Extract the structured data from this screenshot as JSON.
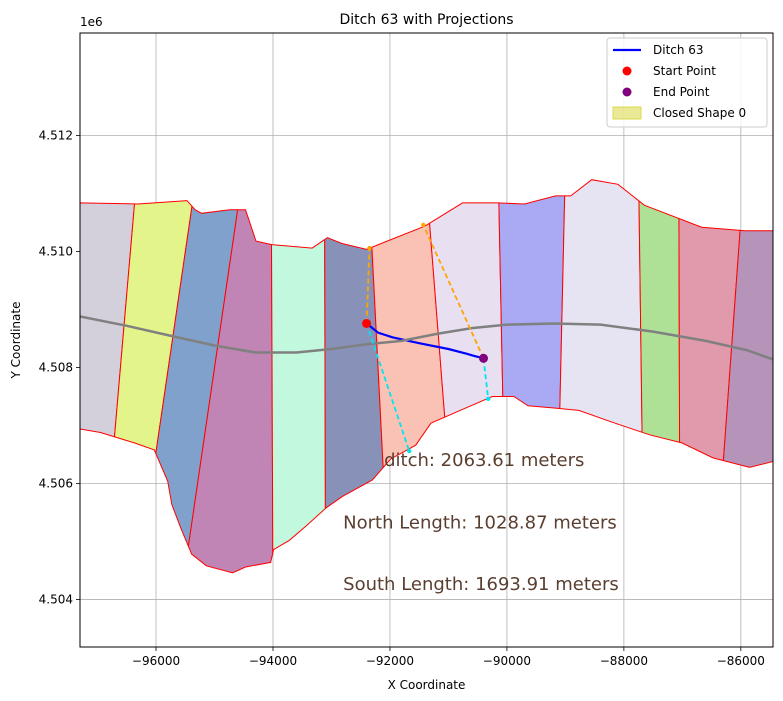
{
  "chart_data": {
    "type": "line",
    "title": "Ditch 63 with Projections",
    "xlabel": "X Coordinate",
    "ylabel": "Y Coordinate",
    "y_offset_label": "1e6",
    "xlim": [
      -97300,
      -85450
    ],
    "ylim": [
      4.50318,
      4.51377
    ],
    "xticks": [
      -96000,
      -94000,
      -92000,
      -90000,
      -88000,
      -86000
    ],
    "xtick_labels": [
      "−96000",
      "−94000",
      "−92000",
      "−90000",
      "−88000",
      "−86000"
    ],
    "yticks": [
      4.504,
      4.506,
      4.508,
      4.51,
      4.512
    ],
    "ytick_labels": [
      "4.504",
      "4.506",
      "4.508",
      "4.510",
      "4.512"
    ],
    "grid": true,
    "legend_position": "top-right",
    "legend": [
      {
        "label": "Ditch 63",
        "kind": "line",
        "color": "#0000ff"
      },
      {
        "label": "Start Point",
        "kind": "marker",
        "color": "#ff0000"
      },
      {
        "label": "End Point",
        "kind": "marker",
        "color": "#800080"
      },
      {
        "label": "Closed Shape 0",
        "kind": "patch",
        "color": "#dada50"
      }
    ],
    "outline": [
      [
        -97300,
        4.51084
      ],
      [
        -96310,
        4.51082
      ],
      [
        -95470,
        4.51088
      ],
      [
        -95330,
        4.51072
      ],
      [
        -95220,
        4.51066
      ],
      [
        -94740,
        4.51072
      ],
      [
        -94470,
        4.51072
      ],
      [
        -94290,
        4.51018
      ],
      [
        -94020,
        4.51012
      ],
      [
        -93330,
        4.51006
      ],
      [
        -93070,
        4.51024
      ],
      [
        -92820,
        4.51014
      ],
      [
        -92400,
        4.51004
      ],
      [
        -91400,
        4.51044
      ],
      [
        -90760,
        4.51084
      ],
      [
        -90150,
        4.51084
      ],
      [
        -89700,
        4.51082
      ],
      [
        -89170,
        4.51096
      ],
      [
        -88910,
        4.51096
      ],
      [
        -88550,
        4.51124
      ],
      [
        -88100,
        4.51116
      ],
      [
        -87650,
        4.5108
      ],
      [
        -86670,
        4.51042
      ],
      [
        -85930,
        4.51036
      ],
      [
        -85450,
        4.51036
      ],
      [
        -85450,
        4.50638
      ],
      [
        -85850,
        4.50628
      ],
      [
        -86470,
        4.50644
      ],
      [
        -87010,
        4.5067
      ],
      [
        -87560,
        4.50684
      ],
      [
        -88150,
        4.50704
      ],
      [
        -88770,
        4.50726
      ],
      [
        -89170,
        4.5073
      ],
      [
        -89640,
        4.50734
      ],
      [
        -89880,
        4.5075
      ],
      [
        -90250,
        4.5075
      ],
      [
        -90800,
        4.50726
      ],
      [
        -91300,
        4.50704
      ],
      [
        -91560,
        4.50666
      ],
      [
        -91990,
        4.50642
      ],
      [
        -92300,
        4.50606
      ],
      [
        -92810,
        4.50578
      ],
      [
        -93090,
        4.50558
      ],
      [
        -93420,
        4.50528
      ],
      [
        -93720,
        4.50502
      ],
      [
        -93990,
        4.50486
      ],
      [
        -94040,
        4.50464
      ],
      [
        -94470,
        4.50456
      ],
      [
        -94690,
        4.50446
      ],
      [
        -95140,
        4.50458
      ],
      [
        -95390,
        4.50478
      ],
      [
        -95580,
        4.50524
      ],
      [
        -95730,
        4.50564
      ],
      [
        -95800,
        4.50604
      ],
      [
        -96030,
        4.50658
      ],
      [
        -96370,
        4.5067
      ],
      [
        -96950,
        4.50688
      ],
      [
        -97300,
        4.50694
      ]
    ],
    "stripes": [
      {
        "color": "#d3d0dc",
        "x_top": [
          -97300,
          -96310
        ],
        "x_bot": [
          -97300,
          -96950
        ]
      },
      {
        "color": "#e3f58a",
        "x_top": [
          -96310,
          -95280
        ],
        "x_bot": [
          -96950,
          -96370
        ]
      },
      {
        "color": "#80a1cb",
        "x_top": [
          -95280,
          -94490
        ],
        "x_bot": [
          -96370,
          -95580
        ]
      },
      {
        "color": "#c085b5",
        "x_top": [
          -94490,
          -94030
        ],
        "x_bot": [
          -95580,
          -94000
        ]
      },
      {
        "color": "#c2f8dd",
        "x_top": [
          -94030,
          -93120
        ],
        "x_bot": [
          -94000,
          -93100
        ]
      },
      {
        "color": "#8892b8",
        "x_top": [
          -93120,
          -92380
        ],
        "x_bot": [
          -93100,
          -92000
        ]
      },
      {
        "color": "#f9c2b4",
        "x_top": [
          -92380,
          -91400
        ],
        "x_bot": [
          -92000,
          -90820
        ]
      },
      {
        "color": "#e8dff0",
        "x_top": [
          -91400,
          -90150
        ],
        "x_bot": [
          -90820,
          -90000
        ]
      },
      {
        "color": "#aaaaf4",
        "x_top": [
          -90150,
          -89000
        ],
        "x_bot": [
          -90000,
          -89170
        ]
      },
      {
        "color": "#e6e4f2",
        "x_top": [
          -89000,
          -87750
        ],
        "x_bot": [
          -89170,
          -87650
        ]
      },
      {
        "color": "#aee196",
        "x_top": [
          -87750,
          -87060
        ],
        "x_bot": [
          -87650,
          -87040
        ]
      },
      {
        "color": "#e09aab",
        "x_top": [
          -87060,
          -85930
        ],
        "x_bot": [
          -87040,
          -86470
        ]
      },
      {
        "color": "#b694b9",
        "x_top": [
          -85930,
          -85450
        ],
        "x_bot": [
          -86470,
          -85450
        ]
      }
    ],
    "series": [
      {
        "name": "Ditch 63",
        "color": "#0000ff",
        "x": [
          -92400,
          -92200,
          -91950,
          -91500,
          -91000,
          -90700,
          -90560,
          -90400
        ],
        "y": [
          4.50876,
          4.5086,
          4.50852,
          4.50842,
          4.50832,
          4.50824,
          4.5082,
          4.50816
        ]
      },
      {
        "name": "centerline",
        "color": "#808080",
        "x": [
          -97300,
          -96500,
          -95800,
          -95000,
          -94300,
          -93600,
          -93000,
          -92400,
          -91800,
          -91200,
          -90600,
          -90000,
          -89200,
          -88400,
          -87500,
          -86600,
          -85900,
          -85450
        ],
        "y": [
          4.50888,
          4.50872,
          4.50856,
          4.50838,
          4.50826,
          4.50826,
          4.50832,
          4.5084,
          4.50846,
          4.50858,
          4.50868,
          4.50874,
          4.50876,
          4.50874,
          4.50862,
          4.50846,
          4.5083,
          4.50814
        ]
      },
      {
        "name": "north-projection-start",
        "color": "#ffa500",
        "x": [
          -92400,
          -92350
        ],
        "y": [
          4.50876,
          4.51006
        ]
      },
      {
        "name": "north-projection-end",
        "color": "#ffa500",
        "x": [
          -90400,
          -91430
        ],
        "y": [
          4.50816,
          4.51046
        ]
      },
      {
        "name": "south-projection-start",
        "color": "#00e5ee",
        "x": [
          -92400,
          -91670
        ],
        "y": [
          4.50876,
          4.50656
        ]
      },
      {
        "name": "south-projection-end",
        "color": "#00e5ee",
        "x": [
          -90400,
          -90320
        ],
        "y": [
          4.50816,
          4.50746
        ]
      }
    ],
    "points": [
      {
        "name": "Start Point",
        "x": -92400,
        "y": 4.50876,
        "color": "#ff0000"
      },
      {
        "name": "End Point",
        "x": -90400,
        "y": 4.50816,
        "color": "#800080"
      }
    ],
    "annotations": [
      {
        "text": "ditch: 2063.61 meters",
        "x": -92100,
        "y": 4.5063
      },
      {
        "text": "North Length: 1028.87 meters",
        "x": -92800,
        "y": 4.50522
      },
      {
        "text": "South Length: 1693.91 meters",
        "x": -92800,
        "y": 4.50416
      }
    ]
  }
}
